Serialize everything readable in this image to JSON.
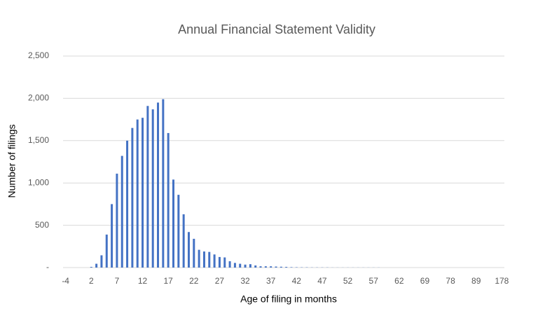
{
  "chart_data": {
    "type": "bar",
    "title": "Annual Financial Statement Validity",
    "x_label": "Age of filing in months",
    "y_label": "Number of filings",
    "categories": [
      "-4",
      null,
      null,
      null,
      null,
      "2",
      null,
      null,
      null,
      null,
      "7",
      null,
      null,
      null,
      null,
      "12",
      null,
      null,
      null,
      null,
      "17",
      null,
      null,
      null,
      null,
      "22",
      null,
      null,
      null,
      null,
      "27",
      null,
      null,
      null,
      null,
      "32",
      null,
      null,
      null,
      null,
      "37",
      null,
      null,
      null,
      null,
      "42",
      null,
      null,
      null,
      null,
      "47",
      null,
      null,
      null,
      null,
      "52",
      null,
      null,
      null,
      null,
      "57",
      null,
      null,
      null,
      null,
      "62",
      null,
      null,
      null,
      null,
      "69",
      null,
      null,
      null,
      null,
      "78",
      null,
      null,
      null,
      null,
      "89",
      null,
      null,
      null,
      null,
      "178"
    ],
    "values": [
      0,
      0,
      0,
      0,
      0,
      8,
      45,
      145,
      390,
      750,
      1110,
      1320,
      1500,
      1650,
      1750,
      1770,
      1910,
      1870,
      1950,
      1990,
      1590,
      1040,
      860,
      630,
      420,
      340,
      210,
      190,
      185,
      155,
      125,
      120,
      75,
      55,
      45,
      35,
      40,
      25,
      15,
      15,
      15,
      12,
      10,
      8,
      5,
      4,
      3,
      3,
      2,
      2,
      2,
      2,
      1,
      1,
      1,
      1,
      1,
      1,
      1,
      1,
      1,
      1,
      0,
      0,
      0,
      0,
      0,
      0,
      0,
      0,
      0,
      0,
      0,
      0,
      0,
      0,
      0,
      0,
      0,
      0,
      0,
      0,
      0,
      0,
      0,
      0
    ],
    "color": "#4472c4",
    "ylim": [
      0,
      2500
    ],
    "yticks": [
      {
        "value": 0,
        "label": "-"
      },
      500,
      {
        "value": 1000,
        "label": "1,000"
      },
      {
        "value": 1500,
        "label": "1,500"
      },
      {
        "value": 2000,
        "label": "2,000"
      },
      {
        "value": 2500,
        "label": "2,500"
      }
    ],
    "grid": true
  }
}
